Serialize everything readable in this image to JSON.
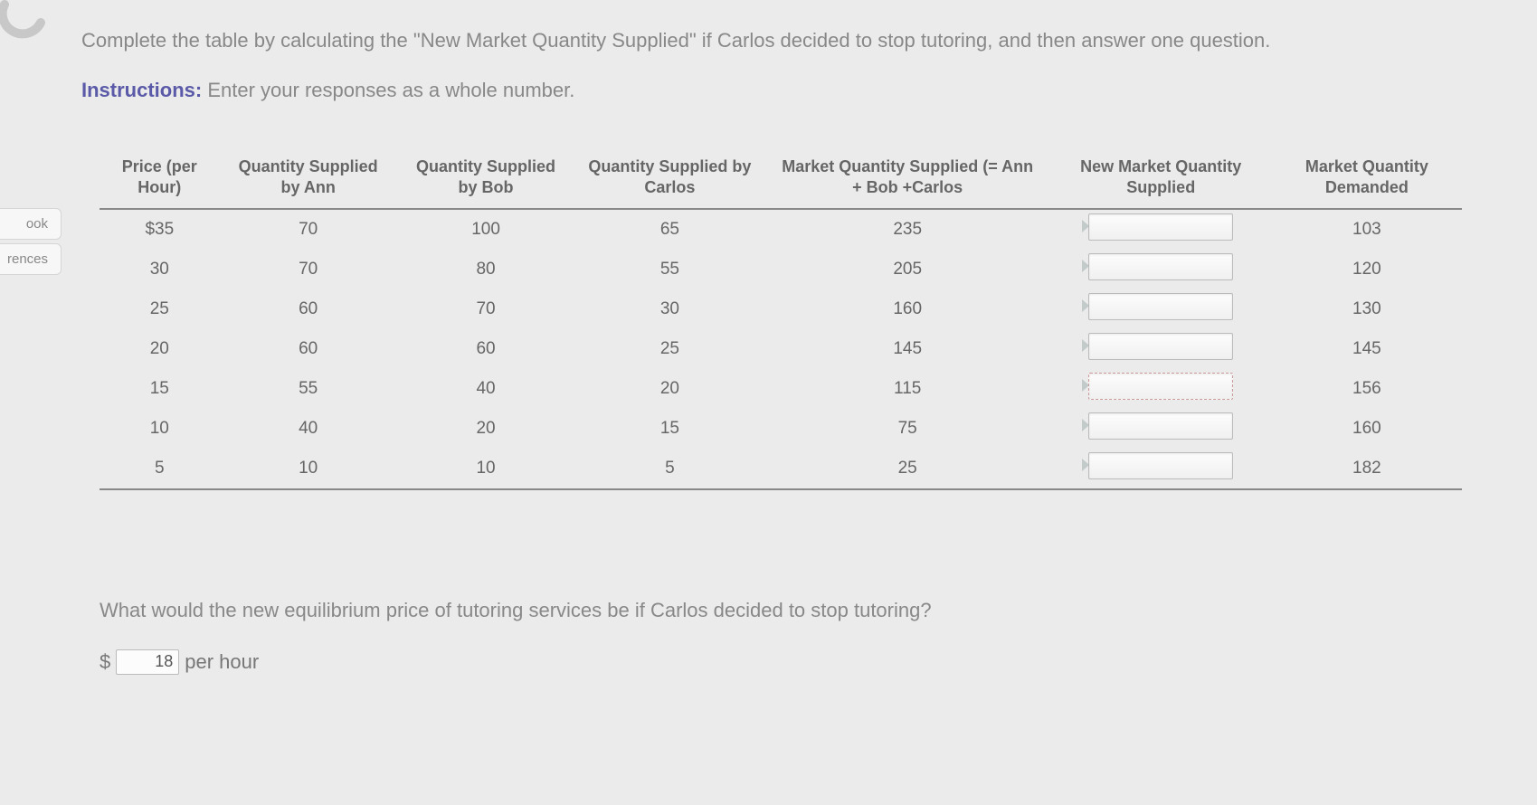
{
  "ring_icon_color": "#c8c8c8",
  "sidebar": {
    "tabs": [
      "ook",
      "rences"
    ]
  },
  "prompt": "Complete the table by calculating the \"New Market Quantity Supplied\" if Carlos decided to stop tutoring, and then answer one question.",
  "instructions": {
    "label": "Instructions:",
    "text": "Enter your responses as a whole number."
  },
  "table": {
    "headers": [
      "Price (per Hour)",
      "Quantity Supplied by Ann",
      "Quantity Supplied by Bob",
      "Quantity Supplied by Carlos",
      "Market Quantity Supplied (= Ann + Bob +Carlos",
      "New Market Quantity Supplied",
      "Market Quantity Demanded"
    ],
    "rows": [
      {
        "price": "$35",
        "ann": "70",
        "bob": "100",
        "carlos": "65",
        "market": "235",
        "new_market": "",
        "demanded": "103"
      },
      {
        "price": "30",
        "ann": "70",
        "bob": "80",
        "carlos": "55",
        "market": "205",
        "new_market": "",
        "demanded": "120"
      },
      {
        "price": "25",
        "ann": "60",
        "bob": "70",
        "carlos": "30",
        "market": "160",
        "new_market": "",
        "demanded": "130"
      },
      {
        "price": "20",
        "ann": "60",
        "bob": "60",
        "carlos": "25",
        "market": "145",
        "new_market": "",
        "demanded": "145"
      },
      {
        "price": "15",
        "ann": "55",
        "bob": "40",
        "carlos": "20",
        "market": "115",
        "new_market": "",
        "demanded": "156"
      },
      {
        "price": "10",
        "ann": "40",
        "bob": "20",
        "carlos": "15",
        "market": "75",
        "new_market": "",
        "demanded": "160"
      },
      {
        "price": "5",
        "ann": "10",
        "bob": "10",
        "carlos": "5",
        "market": "25",
        "new_market": "",
        "demanded": "182"
      }
    ]
  },
  "question": {
    "text": "What would the new equilibrium price of tutoring services be if Carlos decided to stop tutoring?",
    "currency": "$",
    "value": "18",
    "suffix": "per hour"
  }
}
